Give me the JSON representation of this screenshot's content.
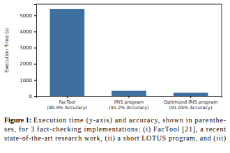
{
  "chart_data": {
    "type": "bar",
    "y_label": "Execution Time (s)",
    "categories": [
      "FacTool\n(80.9% Accuracy)",
      "IRIS program\n(91.2% Accuracy)",
      "Optimized IRIS program\n(91.05% Accuracy)"
    ],
    "values": [
      5400,
      320,
      200
    ],
    "color": "#3e6f9f",
    "ylim": [
      0,
      5700
    ],
    "yticks": [
      0,
      1000,
      2000,
      3000,
      4000,
      5000
    ],
    "grid": false,
    "caption_label": "Figure 1:",
    "caption_lines": [
      "Execution time (y-axis) and accuracy, shown in parenthe-",
      "ses, for 3 fact-checking implementations: (i) FacTool [21], a recent",
      "state-of-the-art research work, (ii) a short LOTUS program, and (iii)"
    ]
  }
}
